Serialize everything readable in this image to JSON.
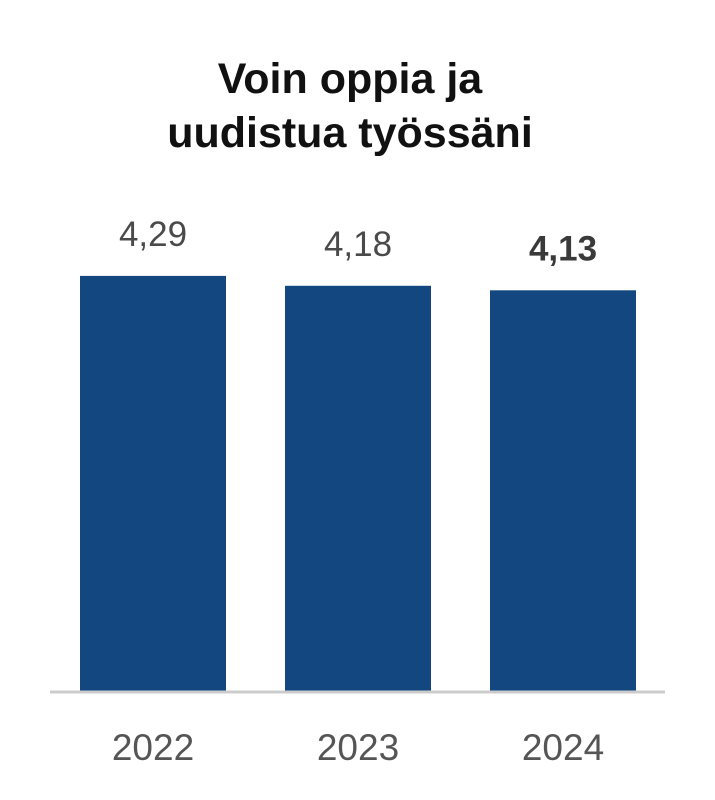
{
  "chart_data": {
    "type": "bar",
    "title_lines": [
      "Voin oppia ja",
      "uudistua työssäni"
    ],
    "categories": [
      "2022",
      "2023",
      "2024"
    ],
    "values": [
      4.29,
      4.18,
      4.13
    ],
    "value_labels": [
      "4,29",
      "4,18",
      "4,13"
    ],
    "highlight_index": 2,
    "bar_color": "#12487f",
    "axis_color": "#cccccc",
    "ylim": [
      1,
      5
    ],
    "grid": false,
    "legend": false
  }
}
